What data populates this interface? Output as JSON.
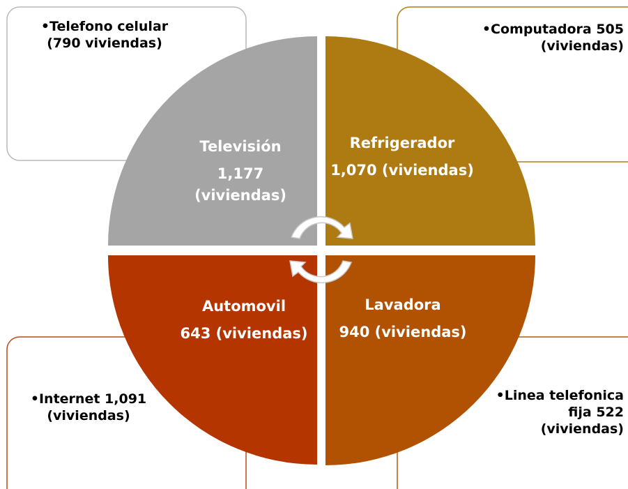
{
  "quadrants": [
    {
      "label": "Televisión",
      "value": "1,177 (viviendas)"
    },
    {
      "label": "Refrigerador",
      "value": "1,070 (viviendas)"
    },
    {
      "label": "Automovil",
      "value": "643 (viviendas)"
    },
    {
      "label": "Lavadora",
      "value": "940 (viviendas)"
    }
  ],
  "boxes": [
    {
      "text": "•Telefono celular (790 viviendas)"
    },
    {
      "text": "•Computadora 505 (viviendas)"
    },
    {
      "text": "•Internet 1,091 (viviendas)"
    },
    {
      "text": "•Linea telefonica fija 522 (viviendas)"
    }
  ]
}
